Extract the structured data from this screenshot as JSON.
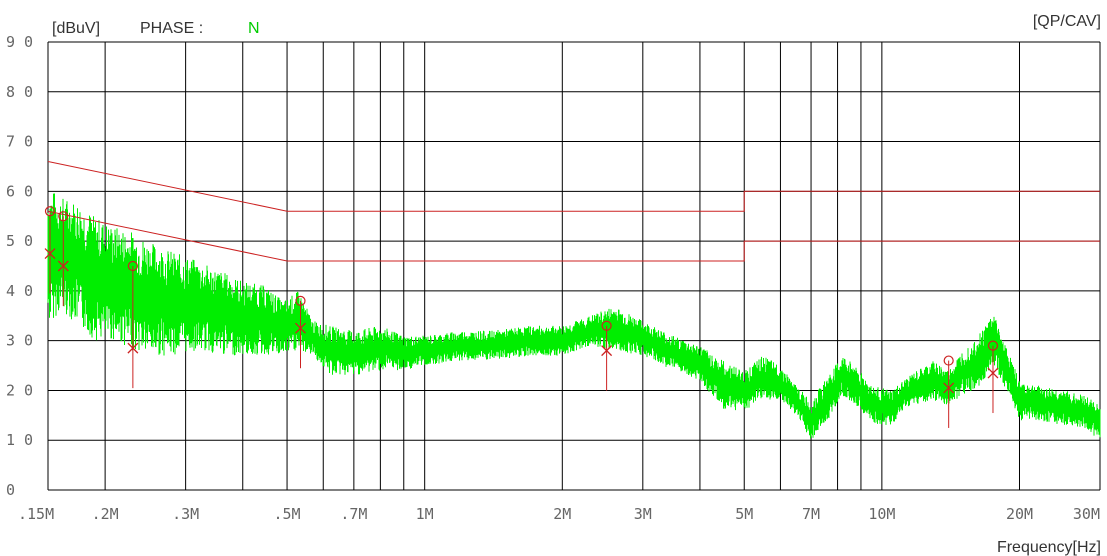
{
  "header": {
    "unit_label": "[dBuV]",
    "phase_label": "PHASE :",
    "phase_value": "N",
    "detector_label": "[QP/CAV]"
  },
  "colors": {
    "trace": "#00ee00",
    "limit": "#cc2222",
    "marker": "#cc2222",
    "grid": "#000000",
    "phase_value": "#00cc00"
  },
  "chart_data": {
    "type": "line",
    "title": "",
    "xlabel": "Frequency[Hz]",
    "ylabel": "[dBuV]",
    "x_scale": "log",
    "xlim": [
      150000,
      30000000
    ],
    "ylim": [
      0,
      90
    ],
    "grid": true,
    "yticks": [
      0,
      10,
      20,
      30,
      40,
      50,
      60,
      70,
      80,
      90
    ],
    "xticks": [
      {
        "value": 150000,
        "label": ".15M"
      },
      {
        "value": 200000,
        "label": ".2M"
      },
      {
        "value": 300000,
        "label": ".3M"
      },
      {
        "value": 500000,
        "label": ".5M"
      },
      {
        "value": 700000,
        "label": ".7M"
      },
      {
        "value": 1000000,
        "label": "1M"
      },
      {
        "value": 2000000,
        "label": "2M"
      },
      {
        "value": 3000000,
        "label": "3M"
      },
      {
        "value": 5000000,
        "label": "5M"
      },
      {
        "value": 7000000,
        "label": "7M"
      },
      {
        "value": 10000000,
        "label": "10M"
      },
      {
        "value": 20000000,
        "label": "20M"
      },
      {
        "value": 30000000,
        "label": "30M"
      }
    ],
    "x_gridlines": [
      150000,
      200000,
      300000,
      400000,
      500000,
      600000,
      700000,
      800000,
      900000,
      1000000,
      2000000,
      3000000,
      4000000,
      5000000,
      6000000,
      7000000,
      8000000,
      9000000,
      10000000,
      20000000,
      30000000
    ],
    "limit_lines": [
      {
        "name": "QP",
        "points": [
          [
            150000,
            66
          ],
          [
            500000,
            56
          ],
          [
            5000000,
            56
          ],
          [
            5000000,
            60
          ],
          [
            30000000,
            60
          ]
        ]
      },
      {
        "name": "AV",
        "points": [
          [
            150000,
            56
          ],
          [
            500000,
            46
          ],
          [
            5000000,
            46
          ],
          [
            5000000,
            50
          ],
          [
            30000000,
            50
          ]
        ]
      }
    ],
    "series": [
      {
        "type": "band",
        "points": [
          [
            150000,
            33,
            61
          ],
          [
            160000,
            36,
            59
          ],
          [
            175000,
            33,
            58
          ],
          [
            190000,
            30,
            55
          ],
          [
            210000,
            30,
            53
          ],
          [
            230000,
            28,
            52
          ],
          [
            250000,
            27,
            50
          ],
          [
            280000,
            27,
            48
          ],
          [
            320000,
            28,
            46
          ],
          [
            360000,
            27,
            44
          ],
          [
            400000,
            27,
            42
          ],
          [
            450000,
            27,
            41
          ],
          [
            490000,
            27,
            38
          ],
          [
            530000,
            28,
            40
          ],
          [
            570000,
            27,
            34
          ],
          [
            620000,
            23,
            33
          ],
          [
            700000,
            23,
            32
          ],
          [
            800000,
            24,
            33
          ],
          [
            900000,
            24,
            31
          ],
          [
            1000000,
            25,
            31
          ],
          [
            1200000,
            26,
            32
          ],
          [
            1400000,
            26,
            32
          ],
          [
            1700000,
            27,
            33
          ],
          [
            2000000,
            27,
            33
          ],
          [
            2300000,
            29,
            35
          ],
          [
            2600000,
            28,
            37
          ],
          [
            3000000,
            27,
            34
          ],
          [
            3500000,
            24,
            31
          ],
          [
            4000000,
            22,
            29
          ],
          [
            4500000,
            16,
            26
          ],
          [
            5000000,
            16,
            24
          ],
          [
            5500000,
            18,
            27
          ],
          [
            6000000,
            18,
            25
          ],
          [
            6500000,
            15,
            21
          ],
          [
            7000000,
            10,
            18
          ],
          [
            7500000,
            13,
            22
          ],
          [
            8200000,
            19,
            27
          ],
          [
            8800000,
            17,
            25
          ],
          [
            9500000,
            13,
            21
          ],
          [
            10500000,
            13,
            20
          ],
          [
            11500000,
            17,
            23
          ],
          [
            13000000,
            18,
            26
          ],
          [
            14000000,
            17,
            24
          ],
          [
            15000000,
            19,
            28
          ],
          [
            16500000,
            21,
            32
          ],
          [
            17500000,
            25,
            36
          ],
          [
            18500000,
            21,
            30
          ],
          [
            20000000,
            14,
            22
          ],
          [
            22000000,
            14,
            21
          ],
          [
            25000000,
            13,
            20
          ],
          [
            28000000,
            12,
            19
          ],
          [
            30000000,
            10,
            17
          ]
        ]
      }
    ],
    "markers": [
      {
        "freq": 150000,
        "qp": 56,
        "av": 47.5
      },
      {
        "freq": 162000,
        "qp": 55,
        "av": 45
      },
      {
        "freq": 230000,
        "qp": 45,
        "av": 28.5
      },
      {
        "freq": 535000,
        "qp": 38,
        "av": 32.5
      },
      {
        "freq": 2500000,
        "qp": 33,
        "av": 28
      },
      {
        "freq": 14000000,
        "qp": 26,
        "av": 20.5
      },
      {
        "freq": 17500000,
        "qp": 29,
        "av": 23.5
      }
    ]
  }
}
